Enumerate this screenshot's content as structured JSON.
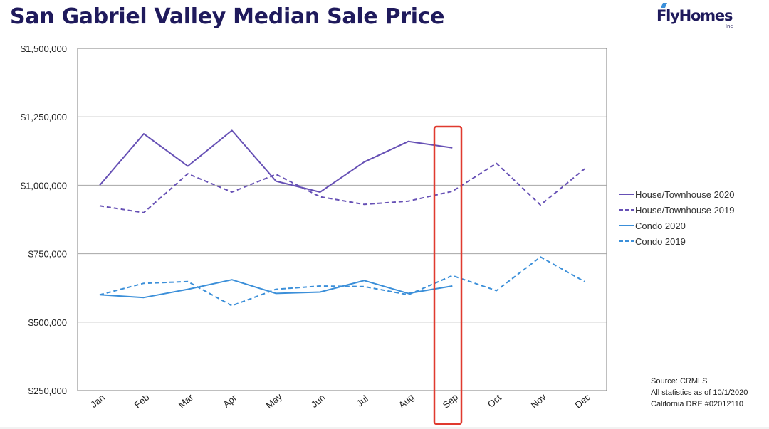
{
  "header": {
    "title": "San Gabriel Valley Median Sale Price",
    "logo_text": "FlyHomes",
    "logo_sub": "Inc"
  },
  "chart_data": {
    "type": "line",
    "title": "San Gabriel Valley Median Sale Price",
    "xlabel": "",
    "ylabel": "",
    "categories": [
      "Jan",
      "Feb",
      "Mar",
      "Apr",
      "May",
      "Jun",
      "Jul",
      "Aug",
      "Sep",
      "Oct",
      "Nov",
      "Dec"
    ],
    "ylim": [
      250000,
      1500000
    ],
    "yticks": [
      250000,
      500000,
      750000,
      1000000,
      1250000,
      1500000
    ],
    "ytick_labels": [
      "$250,000",
      "$500,000",
      "$750,000",
      "$1,000,000",
      "$1,250,000",
      "$1,500,000"
    ],
    "grid": true,
    "legend_position": "right",
    "highlight": {
      "category": "Sep",
      "color": "#e03a2f"
    },
    "series": [
      {
        "name": "House/Townhouse 2020",
        "color": "#6650b5",
        "dash": false,
        "values": [
          1000000,
          1188000,
          1070000,
          1200000,
          1015000,
          975000,
          1085000,
          1160000,
          1137000,
          null,
          null,
          null
        ]
      },
      {
        "name": "House/Townhouse 2019",
        "color": "#6650b5",
        "dash": true,
        "values": [
          925000,
          900000,
          1042000,
          975000,
          1040000,
          958000,
          930000,
          942000,
          978000,
          1080000,
          928000,
          1060000
        ]
      },
      {
        "name": "Condo 2020",
        "color": "#3b8fd9",
        "dash": false,
        "values": [
          600000,
          590000,
          620000,
          655000,
          605000,
          610000,
          652000,
          605000,
          632000,
          null,
          null,
          null
        ]
      },
      {
        "name": "Condo 2019",
        "color": "#3b8fd9",
        "dash": true,
        "values": [
          600000,
          642000,
          648000,
          560000,
          620000,
          632000,
          630000,
          600000,
          670000,
          615000,
          738000,
          648000
        ]
      }
    ]
  },
  "source_note": {
    "line1": "Source: CRMLS",
    "line2": "All statistics as of 10/1/2020",
    "line3": "California DRE #02012110"
  }
}
